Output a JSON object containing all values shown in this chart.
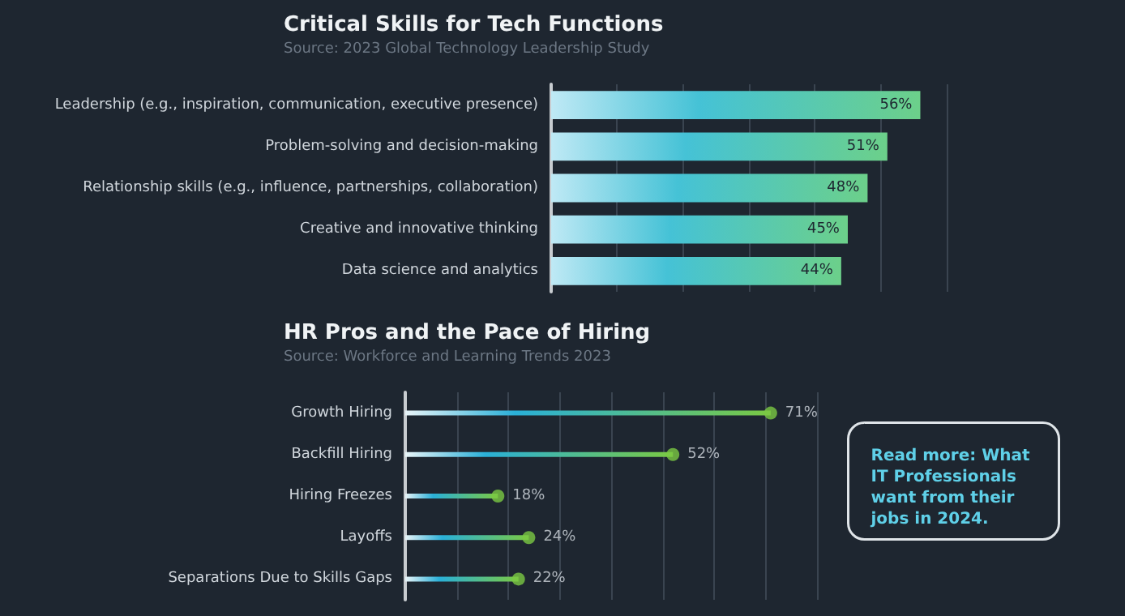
{
  "chart_data": [
    {
      "type": "bar",
      "orientation": "horizontal",
      "title": "Critical Skills for Tech Functions",
      "subtitle": "Source: 2023 Global Technology Leadership Study",
      "categories": [
        "Leadership (e.g., inspiration, communication, executive presence)",
        "Problem-solving and decision-making",
        "Relationship skills (e.g., influence, partnerships, collaboration)",
        "Creative and innovative thinking",
        "Data science and analytics"
      ],
      "values": [
        56,
        51,
        48,
        45,
        44
      ],
      "color": "#45c2d6",
      "value_labels": [
        "56%",
        "51%",
        "48%",
        "45%",
        "44%"
      ],
      "xlim": [
        0,
        60
      ],
      "xticks": [
        {
          "value": 0,
          "label": null
        },
        {
          "value": 10,
          "label": null
        },
        {
          "value": 20,
          "label": null
        },
        {
          "value": 30,
          "label": null
        },
        {
          "value": 40,
          "label": null
        },
        {
          "value": 50,
          "label": null
        },
        {
          "value": 60,
          "label": null
        }
      ],
      "grid": "x"
    },
    {
      "type": "lollipop",
      "orientation": "horizontal",
      "title": "HR Pros and the Pace of Hiring",
      "subtitle": "Source: Workforce and Learning Trends 2023",
      "categories": [
        "Growth Hiring",
        "Backfill Hiring",
        "Hiring Freezes",
        "Layoffs",
        "Separations Due to Skills Gaps"
      ],
      "values": [
        71,
        52,
        18,
        24,
        22
      ],
      "color": "#7ac943",
      "value_labels": [
        "71%",
        "52%",
        "18%",
        "24%",
        "22%"
      ],
      "xlim": [
        0,
        80
      ],
      "xticks": [
        {
          "value": 0,
          "label": null
        },
        {
          "value": 10,
          "label": null
        },
        {
          "value": 20,
          "label": null
        },
        {
          "value": 30,
          "label": null
        },
        {
          "value": 40,
          "label": null
        },
        {
          "value": 50,
          "label": null
        },
        {
          "value": 60,
          "label": null
        },
        {
          "value": 70,
          "label": null
        },
        {
          "value": 80,
          "label": null
        }
      ],
      "grid": "x",
      "annotations": [
        "Read more: What IT Professionals want from their jobs in 2024."
      ]
    }
  ]
}
